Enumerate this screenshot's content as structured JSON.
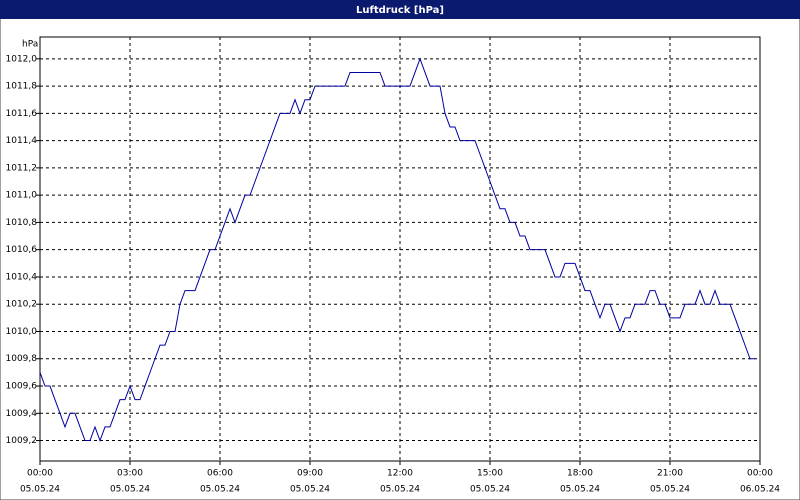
{
  "chart_data": {
    "type": "line",
    "title": "Luftdruck [hPa]",
    "y_label": "hPa",
    "x": [
      0,
      10,
      20,
      30,
      40,
      50,
      60,
      70,
      80,
      90,
      100,
      110,
      120,
      130,
      140,
      150,
      160,
      170,
      180,
      190,
      200,
      210,
      220,
      230,
      240,
      250,
      260,
      270,
      280,
      290,
      300,
      310,
      320,
      330,
      340,
      350,
      360,
      370,
      380,
      390,
      400,
      410,
      420,
      430,
      440,
      450,
      460,
      470,
      480,
      490,
      500,
      510,
      520,
      530,
      540,
      550,
      560,
      570,
      580,
      590,
      600,
      610,
      620,
      630,
      640,
      650,
      660,
      670,
      680,
      690,
      700,
      710,
      720,
      730,
      740,
      750,
      760,
      770,
      780,
      790,
      800,
      810,
      820,
      830,
      840,
      850,
      860,
      870,
      880,
      890,
      900,
      910,
      920,
      930,
      940,
      950,
      960,
      970,
      980,
      990,
      1000,
      1010,
      1020,
      1030,
      1040,
      1050,
      1060,
      1070,
      1080,
      1090,
      1100,
      1110,
      1120,
      1130,
      1140,
      1150,
      1160,
      1170,
      1180,
      1190,
      1200,
      1210,
      1220,
      1230,
      1240,
      1250,
      1260,
      1270,
      1280,
      1290,
      1300,
      1310,
      1320,
      1330,
      1340,
      1350,
      1360,
      1370,
      1380,
      1390,
      1400,
      1410,
      1420,
      1430
    ],
    "series": [
      {
        "name": "Luftdruck",
        "color": "#0000a0",
        "values": [
          1009.7,
          1009.6,
          1009.6,
          1009.5,
          1009.4,
          1009.3,
          1009.4,
          1009.4,
          1009.3,
          1009.2,
          1009.2,
          1009.3,
          1009.2,
          1009.3,
          1009.3,
          1009.4,
          1009.5,
          1009.5,
          1009.6,
          1009.5,
          1009.5,
          1009.6,
          1009.7,
          1009.8,
          1009.9,
          1009.9,
          1010.0,
          1010.0,
          1010.2,
          1010.3,
          1010.3,
          1010.3,
          1010.4,
          1010.5,
          1010.6,
          1010.6,
          1010.7,
          1010.8,
          1010.9,
          1010.8,
          1010.9,
          1011.0,
          1011.0,
          1011.1,
          1011.2,
          1011.3,
          1011.4,
          1011.5,
          1011.6,
          1011.6,
          1011.6,
          1011.7,
          1011.6,
          1011.7,
          1011.7,
          1011.8,
          1011.8,
          1011.8,
          1011.8,
          1011.8,
          1011.8,
          1011.8,
          1011.9,
          1011.9,
          1011.9,
          1011.9,
          1011.9,
          1011.9,
          1011.9,
          1011.8,
          1011.8,
          1011.8,
          1011.8,
          1011.8,
          1011.8,
          1011.9,
          1012.0,
          1011.9,
          1011.8,
          1011.8,
          1011.8,
          1011.6,
          1011.5,
          1011.5,
          1011.4,
          1011.4,
          1011.4,
          1011.4,
          1011.3,
          1011.2,
          1011.1,
          1011.0,
          1010.9,
          1010.9,
          1010.8,
          1010.8,
          1010.7,
          1010.7,
          1010.6,
          1010.6,
          1010.6,
          1010.6,
          1010.5,
          1010.4,
          1010.4,
          1010.5,
          1010.5,
          1010.5,
          1010.4,
          1010.3,
          1010.3,
          1010.2,
          1010.1,
          1010.2,
          1010.2,
          1010.1,
          1010.0,
          1010.1,
          1010.1,
          1010.2,
          1010.2,
          1010.2,
          1010.3,
          1010.3,
          1010.2,
          1010.2,
          1010.1,
          1010.1,
          1010.1,
          1010.2,
          1010.2,
          1010.2,
          1010.3,
          1010.2,
          1010.2,
          1010.3,
          1010.2,
          1010.2,
          1010.2,
          1010.1,
          1010.0,
          1009.9,
          1009.8,
          1009.8
        ]
      }
    ],
    "xlim": [
      0,
      1440
    ],
    "xticks": [
      {
        "value": 0,
        "label": "00:00"
      },
      {
        "value": 180,
        "label": "03:00"
      },
      {
        "value": 360,
        "label": "06:00"
      },
      {
        "value": 540,
        "label": "09:00"
      },
      {
        "value": 720,
        "label": "12:00"
      },
      {
        "value": 900,
        "label": "15:00"
      },
      {
        "value": 1080,
        "label": "18:00"
      },
      {
        "value": 1260,
        "label": "21:00"
      },
      {
        "value": 1440,
        "label": "00:00"
      }
    ],
    "xtick_dates": [
      "05.05.24",
      "05.05.24",
      "05.05.24",
      "05.05.24",
      "05.05.24",
      "05.05.24",
      "05.05.24",
      "05.05.24",
      "06.05.24"
    ],
    "ylim": [
      1009.05,
      1012.16
    ],
    "yticks": [
      {
        "value": 1009.2,
        "label": "1009,2"
      },
      {
        "value": 1009.4,
        "label": "1009,4"
      },
      {
        "value": 1009.6,
        "label": "1009,6"
      },
      {
        "value": 1009.8,
        "label": "1009,8"
      },
      {
        "value": 1010.0,
        "label": "1010,0"
      },
      {
        "value": 1010.2,
        "label": "1010,2"
      },
      {
        "value": 1010.4,
        "label": "1010,4"
      },
      {
        "value": 1010.6,
        "label": "1010,6"
      },
      {
        "value": 1010.8,
        "label": "1010,8"
      },
      {
        "value": 1011.0,
        "label": "1011,0"
      },
      {
        "value": 1011.2,
        "label": "1011,2"
      },
      {
        "value": 1011.4,
        "label": "1011,4"
      },
      {
        "value": 1011.6,
        "label": "1011,6"
      },
      {
        "value": 1011.8,
        "label": "1011,8"
      },
      {
        "value": 1012.0,
        "label": "1012,0"
      }
    ],
    "grid": true
  }
}
